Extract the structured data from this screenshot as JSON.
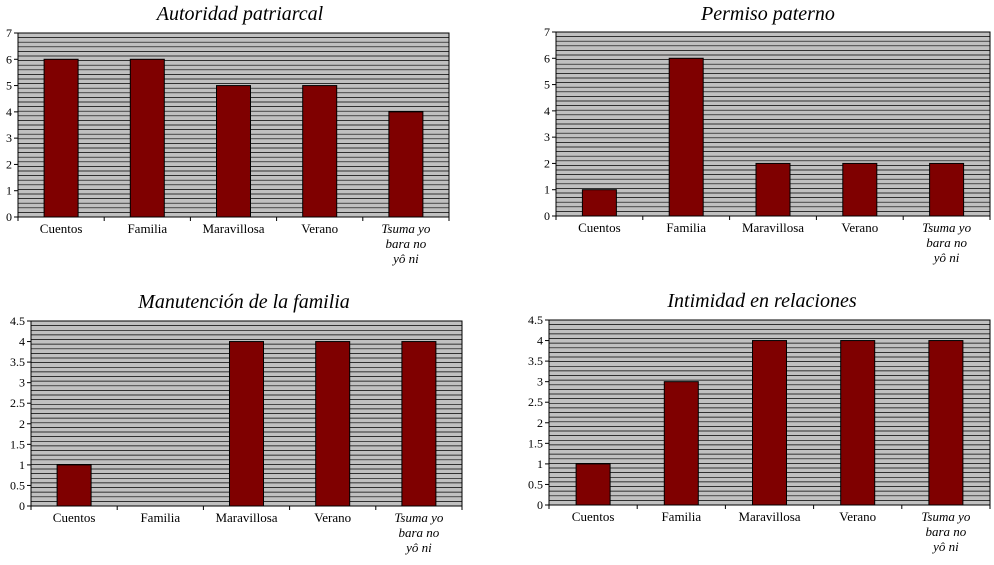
{
  "chart_data": [
    {
      "type": "bar",
      "title": "Autoridad patriarcal",
      "categories": [
        "Cuentos",
        "Familia",
        "Maravillosa",
        "Verano",
        "Tsuma yo bara no yô ni"
      ],
      "values": [
        6,
        6,
        5,
        5,
        4
      ],
      "yticks": [
        "0",
        "1",
        "2",
        "3",
        "4",
        "5",
        "6",
        "7"
      ],
      "ylim": [
        0,
        7
      ],
      "grid": true
    },
    {
      "type": "bar",
      "title": "Permiso paterno",
      "categories": [
        "Cuentos",
        "Familia",
        "Maravillosa",
        "Verano",
        "Tsuma yo bara no yô ni"
      ],
      "values": [
        1,
        6,
        2,
        2,
        2
      ],
      "yticks": [
        "0",
        "1",
        "2",
        "3",
        "4",
        "5",
        "6",
        "7"
      ],
      "ylim": [
        0,
        7
      ],
      "grid": true
    },
    {
      "type": "bar",
      "title": "Manutención de la familia",
      "categories": [
        "Cuentos",
        "Familia",
        "Maravillosa",
        "Verano",
        "Tsuma yo bara no yô ni"
      ],
      "values": [
        1,
        0,
        4,
        4,
        4
      ],
      "yticks": [
        "0",
        "0.5",
        "1",
        "1.5",
        "2",
        "2.5",
        "3",
        "3.5",
        "4",
        "4.5"
      ],
      "ylim": [
        0,
        4.5
      ],
      "grid": true
    },
    {
      "type": "bar",
      "title": "Intimidad en relaciones",
      "categories": [
        "Cuentos",
        "Familia",
        "Maravillosa",
        "Verano",
        "Tsuma yo bara no yô ni"
      ],
      "values": [
        1,
        3,
        4,
        4,
        4
      ],
      "yticks": [
        "0",
        "0.5",
        "1",
        "1.5",
        "2",
        "2.5",
        "3",
        "3.5",
        "4",
        "4.5"
      ],
      "ylim": [
        0,
        4.5
      ],
      "grid": true
    }
  ],
  "colors": {
    "bar": "#7f0000",
    "plot_bg": "#c0c0c0",
    "gridline": "#000000"
  }
}
